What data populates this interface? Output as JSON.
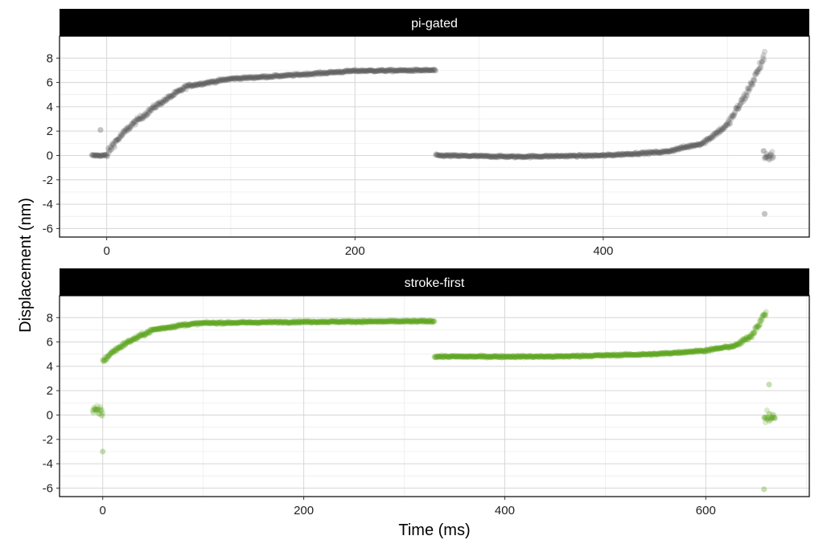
{
  "chart_data": {
    "type": "scatter",
    "xlabel": "Time (ms)",
    "ylabel": "Displacement (nm)",
    "ylim": [
      -6.7,
      9.8
    ],
    "y_ticks": [
      -6,
      -4,
      -2,
      0,
      2,
      4,
      6,
      8
    ],
    "y_tick_labels": [
      "-6",
      "-4",
      "-2",
      "0",
      "2",
      "4",
      "6",
      "8"
    ],
    "grid": true,
    "panels": [
      {
        "strip_label": "pi-gated",
        "color": "#555555",
        "xlim": [
          -38,
          566
        ],
        "x_ticks": [
          0,
          200,
          400
        ],
        "x_tick_labels": [
          "0",
          "200",
          "400"
        ],
        "minor_x_ticks": [
          100,
          300,
          500
        ],
        "segments": [
          {
            "x_range": [
              -12,
              265
            ],
            "keypoints": [
              [
                -12,
                0
              ],
              [
                0,
                0
              ],
              [
                5,
                0.9
              ],
              [
                20,
                2.5
              ],
              [
                40,
                4.1
              ],
              [
                65,
                5.7
              ],
              [
                100,
                6.3
              ],
              [
                150,
                6.6
              ],
              [
                200,
                6.95
              ],
              [
                265,
                7.0
              ]
            ]
          },
          {
            "x_range": [
              265,
              530
            ],
            "keypoints": [
              [
                265,
                0
              ],
              [
                330,
                -0.1
              ],
              [
                400,
                0
              ],
              [
                450,
                0.3
              ],
              [
                480,
                1.0
              ],
              [
                500,
                2.5
              ],
              [
                515,
                5.0
              ],
              [
                525,
                7.0
              ],
              [
                530,
                8.3
              ]
            ]
          },
          {
            "x_range": [
              529,
              537
            ],
            "keypoints": [
              [
                529,
                0
              ],
              [
                537,
                0
              ]
            ]
          }
        ],
        "outliers": [
          [
            530,
            -4.8
          ],
          [
            -5,
            2.1
          ]
        ]
      },
      {
        "strip_label": "stroke-first",
        "color": "#5aa31c",
        "xlim": [
          -43,
          703
        ],
        "x_ticks": [
          0,
          200,
          400,
          600
        ],
        "x_tick_labels": [
          "0",
          "200",
          "400",
          "600"
        ],
        "minor_x_ticks": [
          100,
          300,
          500,
          700
        ],
        "segments": [
          {
            "x_range": [
              -10,
              0
            ],
            "keypoints": [
              [
                -10,
                0.3
              ],
              [
                0,
                0.3
              ]
            ]
          },
          {
            "x_range": [
              0,
              330
            ],
            "keypoints": [
              [
                0,
                4.4
              ],
              [
                10,
                5.2
              ],
              [
                25,
                6.0
              ],
              [
                50,
                7.0
              ],
              [
                80,
                7.4
              ],
              [
                100,
                7.55
              ],
              [
                200,
                7.65
              ],
              [
                330,
                7.7
              ]
            ]
          },
          {
            "x_range": [
              330,
              660
            ],
            "keypoints": [
              [
                330,
                4.8
              ],
              [
                450,
                4.8
              ],
              [
                550,
                5.0
              ],
              [
                600,
                5.3
              ],
              [
                630,
                5.7
              ],
              [
                645,
                6.5
              ],
              [
                655,
                7.8
              ],
              [
                660,
                8.4
              ]
            ]
          },
          {
            "x_range": [
              658,
              669
            ],
            "keypoints": [
              [
                658,
                -0.2
              ],
              [
                669,
                -0.2
              ]
            ]
          }
        ],
        "outliers": [
          [
            0,
            -3.0
          ],
          [
            658,
            -6.1
          ],
          [
            663,
            2.5
          ]
        ]
      }
    ]
  }
}
